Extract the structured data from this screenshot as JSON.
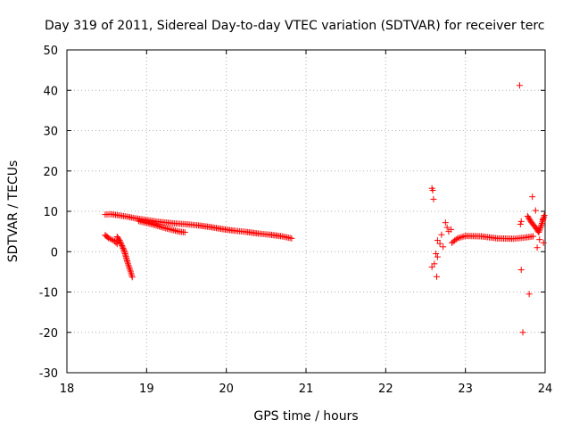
{
  "chart_data": {
    "type": "scatter",
    "title": "Day 319 of 2011, Sidereal Day-to-day VTEC variation (SDTVAR) for receiver terc",
    "xlabel": "GPS time / hours",
    "ylabel": "SDTVAR / TECUs",
    "xlim": [
      18,
      24
    ],
    "ylim": [
      -30,
      50
    ],
    "x_ticks": [
      18,
      19,
      20,
      21,
      22,
      23,
      24
    ],
    "y_ticks": [
      -30,
      -20,
      -10,
      0,
      10,
      20,
      30,
      40,
      50
    ],
    "x_tick_labels": [
      "18",
      "19",
      "20",
      "21",
      "22",
      "23",
      "24"
    ],
    "y_tick_labels": [
      "-30",
      "-20",
      "-10",
      "0",
      "10",
      "20",
      "30",
      "40",
      "50"
    ],
    "grid": true,
    "marker": "+",
    "color": "#ff0000",
    "series": [
      {
        "name": "SDTVAR",
        "segments": [
          [
            [
              18.48,
              9.2
            ],
            [
              18.55,
              9.3
            ],
            [
              18.65,
              9.0
            ],
            [
              18.75,
              8.7
            ],
            [
              18.85,
              8.3
            ],
            [
              18.95,
              8.0
            ],
            [
              19.05,
              7.7
            ],
            [
              19.15,
              7.4
            ],
            [
              19.25,
              7.2
            ],
            [
              19.35,
              7.0
            ],
            [
              19.5,
              6.8
            ],
            [
              19.65,
              6.5
            ],
            [
              19.8,
              6.1
            ],
            [
              19.95,
              5.6
            ],
            [
              20.1,
              5.2
            ],
            [
              20.25,
              4.9
            ],
            [
              20.4,
              4.5
            ],
            [
              20.55,
              4.2
            ],
            [
              20.7,
              3.8
            ],
            [
              20.82,
              3.3
            ]
          ],
          [
            [
              18.9,
              7.6
            ],
            [
              19.0,
              7.1
            ],
            [
              19.1,
              6.6
            ],
            [
              19.2,
              6.0
            ],
            [
              19.3,
              5.5
            ],
            [
              19.4,
              5.0
            ],
            [
              19.48,
              4.8
            ]
          ],
          [
            [
              18.48,
              4.1
            ],
            [
              18.52,
              3.4
            ],
            [
              18.56,
              3.0
            ],
            [
              18.6,
              2.6
            ],
            [
              18.63,
              1.9
            ]
          ],
          [
            [
              18.63,
              3.7
            ],
            [
              18.66,
              2.8
            ],
            [
              18.69,
              1.5
            ],
            [
              18.72,
              0.2
            ],
            [
              18.74,
              -1.2
            ],
            [
              18.76,
              -2.6
            ],
            [
              18.78,
              -3.8
            ],
            [
              18.8,
              -5.0
            ],
            [
              18.82,
              -6.3
            ]
          ],
          [
            [
              22.83,
              2.2
            ],
            [
              22.9,
              3.3
            ],
            [
              23.0,
              3.9
            ],
            [
              23.2,
              3.8
            ],
            [
              23.4,
              3.3
            ],
            [
              23.6,
              3.2
            ],
            [
              23.75,
              3.5
            ],
            [
              23.85,
              3.8
            ]
          ],
          [
            [
              23.78,
              8.8
            ],
            [
              23.83,
              7.2
            ],
            [
              23.88,
              6.0
            ],
            [
              23.92,
              4.8
            ],
            [
              23.96,
              7.0
            ],
            [
              23.99,
              9.0
            ]
          ]
        ],
        "points": [
          [
            22.58,
            15.7
          ],
          [
            22.59,
            15.2
          ],
          [
            22.6,
            13.0
          ],
          [
            22.58,
            -3.8
          ],
          [
            22.61,
            -3.0
          ],
          [
            22.63,
            -0.5
          ],
          [
            22.65,
            -1.3
          ],
          [
            22.64,
            -6.2
          ],
          [
            22.65,
            2.8
          ],
          [
            22.68,
            2.0
          ],
          [
            22.7,
            4.2
          ],
          [
            22.72,
            1.2
          ],
          [
            22.75,
            7.2
          ],
          [
            22.77,
            6.0
          ],
          [
            22.79,
            5.0
          ],
          [
            22.82,
            5.5
          ],
          [
            23.68,
            41.2
          ],
          [
            23.7,
            7.5
          ],
          [
            23.69,
            6.8
          ],
          [
            23.7,
            -4.5
          ],
          [
            23.72,
            -20.0
          ],
          [
            23.8,
            -10.5
          ],
          [
            23.84,
            13.6
          ],
          [
            23.88,
            10.2
          ],
          [
            23.9,
            1.0
          ],
          [
            23.93,
            3.0
          ],
          [
            23.97,
            8.0
          ],
          [
            23.98,
            2.2
          ]
        ]
      }
    ]
  }
}
